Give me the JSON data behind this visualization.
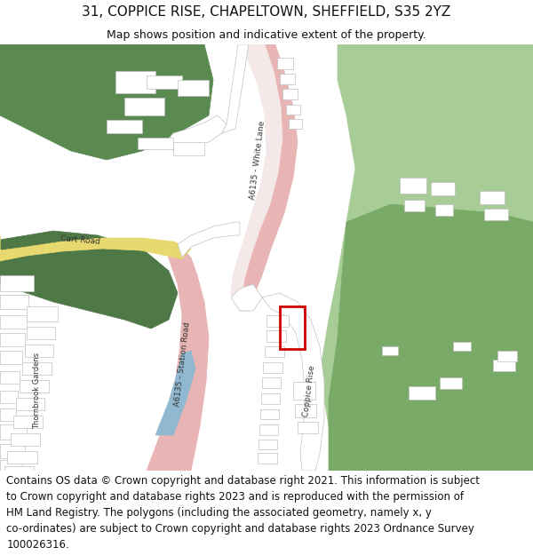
{
  "title_line1": "31, COPPICE RISE, CHAPELTOWN, SHEFFIELD, S35 2YZ",
  "title_line2": "Map shows position and indicative extent of the property.",
  "footer_lines": [
    "Contains OS data © Crown copyright and database right 2021. This information is subject",
    "to Crown copyright and database rights 2023 and is reproduced with the permission of",
    "HM Land Registry. The polygons (including the associated geometry, namely x, y",
    "co-ordinates) are subject to Crown copyright and database rights 2023 Ordnance Survey",
    "100026316."
  ],
  "bg_color": "#ffffff",
  "map_green_dark": "#5a8a50",
  "map_green_light": "#8cb87a",
  "map_green_lighter": "#a8cc96",
  "road_pink": "#e8b4b4",
  "road_white": "#ffffff",
  "road_yellow": "#e8d870",
  "road_blue": "#90b8d0",
  "building_fill": "#ffffff",
  "building_edge": "#c0c0c0",
  "property_red": "#cc0000",
  "text_dark": "#333333",
  "title_fontsize": 11,
  "subtitle_fontsize": 9,
  "footer_fontsize": 8.5,
  "label_fontsize": 6.5
}
